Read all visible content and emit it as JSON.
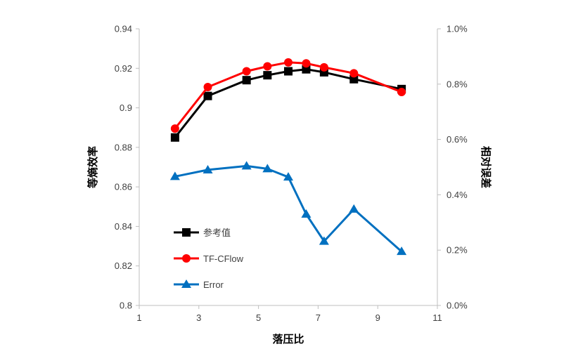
{
  "chart_data": {
    "type": "line",
    "xlabel": "落压比",
    "ylabel": "等熵效率",
    "y2label": "相对误差",
    "xlim": [
      1,
      11
    ],
    "xticks": [
      "1",
      "3",
      "5",
      "7",
      "9",
      "11"
    ],
    "xtick_values": [
      1,
      3,
      5,
      7,
      9,
      11
    ],
    "ylim": [
      0.8,
      0.94
    ],
    "yticks": [
      "0.8",
      "0.82",
      "0.84",
      "0.86",
      "0.88",
      "0.9",
      "0.92",
      "0.94"
    ],
    "ytick_values": [
      0.8,
      0.82,
      0.84,
      0.86,
      0.88,
      0.9,
      0.92,
      0.94
    ],
    "y2lim": [
      0,
      1.0
    ],
    "y2ticks": [
      "0.0%",
      "0.2%",
      "0.4%",
      "0.6%",
      "0.8%",
      "1.0%"
    ],
    "y2tick_values": [
      0,
      0.2,
      0.4,
      0.6,
      0.8,
      1.0
    ],
    "grid": false,
    "legend_position": "lower-left",
    "series": [
      {
        "name": "参考值",
        "axis": "left",
        "marker": "square",
        "color": "#000000",
        "x": [
          2.2,
          3.3,
          4.6,
          5.3,
          6.0,
          6.6,
          7.2,
          8.2,
          9.8
        ],
        "y": [
          0.885,
          0.906,
          0.914,
          0.9165,
          0.9185,
          0.9195,
          0.918,
          0.9145,
          0.9095
        ]
      },
      {
        "name": "TF-CFlow",
        "axis": "left",
        "marker": "circle",
        "color": "#ff0000",
        "x": [
          2.2,
          3.3,
          4.6,
          5.3,
          6.0,
          6.6,
          7.2,
          8.2,
          9.8
        ],
        "y": [
          0.8895,
          0.9105,
          0.9185,
          0.921,
          0.923,
          0.9225,
          0.9205,
          0.9175,
          0.908
        ]
      },
      {
        "name": "Error",
        "axis": "right",
        "marker": "triangle",
        "color": "#0070c0",
        "x": [
          2.2,
          3.3,
          4.6,
          5.3,
          6.0,
          6.6,
          7.2,
          8.2,
          9.8
        ],
        "y": [
          0.466,
          0.49,
          0.504,
          0.494,
          0.464,
          0.33,
          0.232,
          0.348,
          0.195
        ]
      }
    ]
  }
}
